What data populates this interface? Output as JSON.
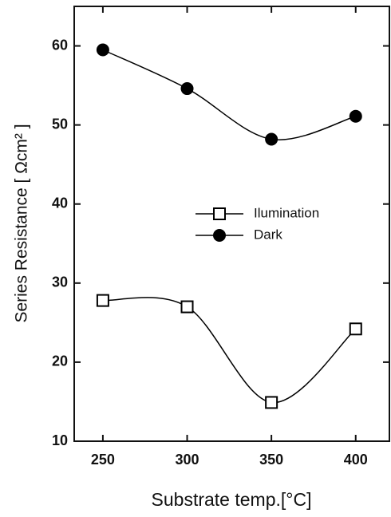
{
  "chart_data": {
    "type": "line",
    "xlabel": "Substrate temp.[°C]",
    "ylabel": "Series Resistance [ Ωcm² ]",
    "x": [
      250,
      300,
      350,
      400
    ],
    "series": [
      {
        "name": "Ilumination",
        "color": "#000000",
        "marker": "square-open",
        "values": [
          27.8,
          27.0,
          14.9,
          24.2
        ]
      },
      {
        "name": "Dark",
        "color": "#000000",
        "marker": "circle",
        "values": [
          59.5,
          54.6,
          48.2,
          51.1
        ]
      }
    ],
    "xlim": [
      233,
      420
    ],
    "xticks": [
      250,
      300,
      350,
      400
    ],
    "ylim": [
      10,
      65
    ],
    "yticks": [
      10,
      20,
      30,
      40,
      50,
      60
    ],
    "legend": "center",
    "smooth": true
  }
}
